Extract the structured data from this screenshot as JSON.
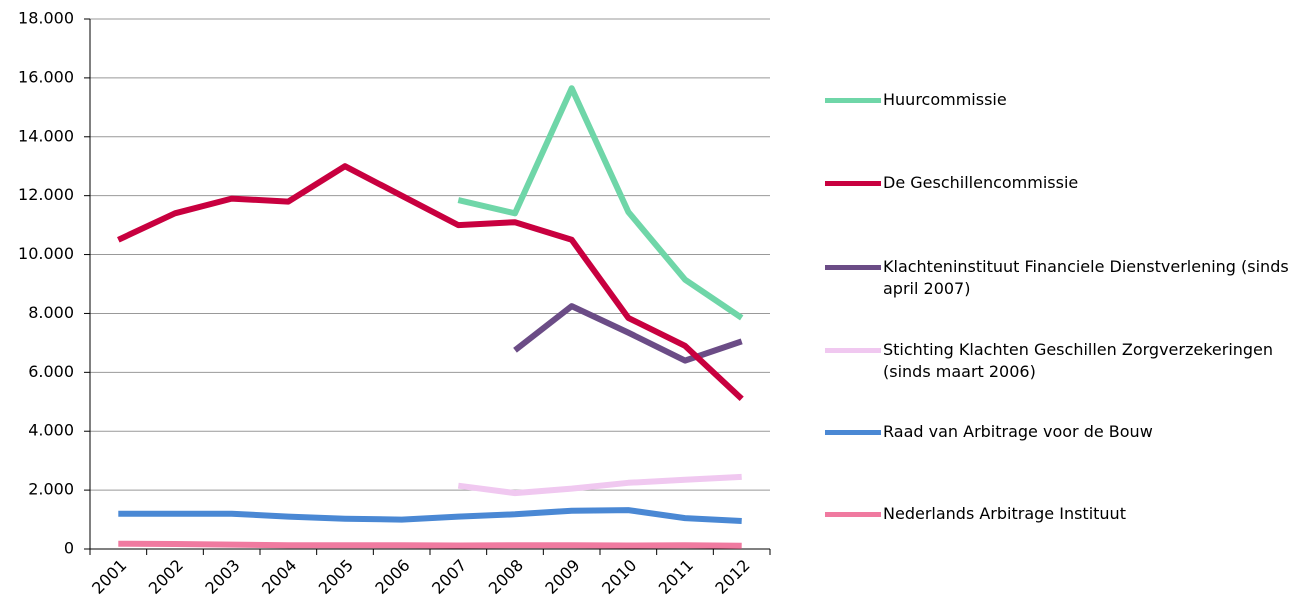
{
  "chart_data": {
    "type": "line",
    "categories": [
      "2001",
      "2002",
      "2003",
      "2004",
      "2005",
      "2006",
      "2007",
      "2008",
      "2009",
      "2010",
      "2011",
      "2012"
    ],
    "series": [
      {
        "name": "Huurcommissie",
        "color": "#6fd6a8",
        "values": [
          null,
          null,
          null,
          null,
          null,
          null,
          11850,
          11400,
          15650,
          11450,
          9150,
          7850
        ]
      },
      {
        "name": "De Geschillencommissie",
        "color": "#c8003f",
        "values": [
          10500,
          11400,
          11900,
          11800,
          13000,
          12000,
          11000,
          11100,
          10500,
          7850,
          6900,
          5100
        ]
      },
      {
        "name": "Klachteninstituut Financiele Dienstverlening (sinds april 2007)",
        "color": "#6b4c86",
        "values": [
          null,
          null,
          null,
          null,
          null,
          null,
          null,
          6750,
          8250,
          7350,
          6400,
          7050
        ]
      },
      {
        "name": "Stichting Klachten Geschillen Zorgverzekeringen (sinds maart 2006)",
        "color": "#f0c8f0",
        "values": [
          null,
          null,
          null,
          null,
          null,
          null,
          2150,
          1900,
          2050,
          2250,
          2350,
          2450
        ]
      },
      {
        "name": "Raad van Arbitrage voor de Bouw",
        "color": "#4a88d4",
        "values": [
          1200,
          1200,
          1200,
          1100,
          1030,
          1000,
          1100,
          1180,
          1300,
          1320,
          1050,
          950
        ]
      },
      {
        "name": "Nederlands Arbitrage Instituut",
        "color": "#f07aa0",
        "values": [
          180,
          170,
          150,
          130,
          130,
          130,
          120,
          130,
          130,
          120,
          130,
          110
        ]
      }
    ],
    "ylim": [
      0,
      18000
    ],
    "yticks": [
      0,
      {
        "value": 2000,
        "label": "2.000"
      },
      {
        "value": 4000,
        "label": "4.000"
      },
      {
        "value": 6000,
        "label": "6.000"
      },
      {
        "value": 8000,
        "label": "8.000"
      },
      {
        "value": 10000,
        "label": "10.000"
      },
      {
        "value": 12000,
        "label": "12.000"
      },
      {
        "value": 14000,
        "label": "14.000"
      },
      {
        "value": 16000,
        "label": "16.000"
      },
      {
        "value": 18000,
        "label": "18.000"
      }
    ],
    "grid": true,
    "legend": "right"
  }
}
